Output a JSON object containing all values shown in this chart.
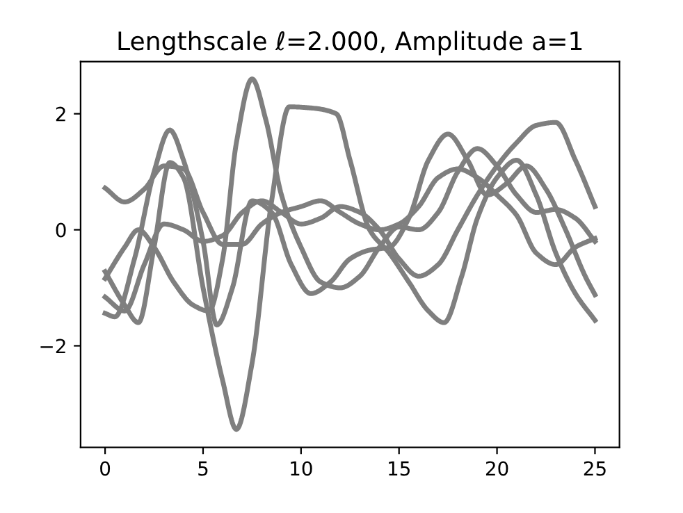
{
  "chart_data": {
    "type": "line",
    "title": "Lengthscale ℓ=2.000, Amplitude a=1",
    "series": [
      {
        "color": "#7f7f7f",
        "x": [
          0,
          1,
          2,
          3,
          4,
          5,
          6,
          7,
          8,
          9,
          10,
          11,
          12,
          13,
          14,
          15,
          16,
          17,
          18,
          19,
          20,
          21,
          22,
          23,
          24,
          25
        ],
        "values": [
          0.72,
          0.48,
          0.7,
          1.1,
          1.05,
          0.3,
          -0.25,
          -0.25,
          0.1,
          0.3,
          0.4,
          0.5,
          0.3,
          0.1,
          0.0,
          0.1,
          0.4,
          0.9,
          1.05,
          0.9,
          0.6,
          0.25,
          -0.4,
          -0.6,
          -0.3,
          -0.15
        ]
      },
      {
        "color": "#7f7f7f",
        "x": [
          0,
          0.5,
          1.5,
          2.5,
          3.3,
          4,
          5,
          5.7,
          6.5,
          7.5,
          8.5,
          9.5,
          10.5,
          11.5,
          12.5,
          13.5,
          14.5,
          15.5,
          16.5,
          17.5,
          18.5,
          19.5,
          20.5,
          21.5,
          22.5,
          23.5,
          24.5,
          25
        ],
        "values": [
          -1.44,
          -1.5,
          -0.5,
          1.0,
          1.72,
          1.2,
          -0.2,
          -1.64,
          -1.0,
          0.5,
          0.3,
          -0.6,
          -1.1,
          -0.9,
          -0.5,
          -0.35,
          -0.3,
          0.2,
          1.2,
          1.65,
          1.2,
          0.6,
          0.8,
          1.1,
          0.7,
          0.0,
          -0.8,
          -1.12
        ]
      },
      {
        "color": "#7f7f7f",
        "x": [
          0,
          1,
          1.7,
          2.5,
          3.3,
          4,
          5,
          6,
          6.7,
          7.5,
          8.5,
          9.4,
          10.5,
          11.8,
          12.5,
          13.5,
          14.5,
          15.5,
          16.5,
          17.3,
          18.2,
          19,
          20,
          21,
          22,
          23,
          24,
          25
        ],
        "values": [
          -0.72,
          -1.3,
          -1.6,
          -0.3,
          1.16,
          0.9,
          -1.0,
          -2.6,
          -3.44,
          -2.3,
          0.5,
          2.12,
          2.1,
          2.0,
          1.2,
          0.0,
          -0.4,
          -0.9,
          -1.4,
          -1.6,
          -0.8,
          0.2,
          0.9,
          1.2,
          0.6,
          -0.4,
          -1.1,
          -1.56
        ]
      },
      {
        "color": "#7f7f7f",
        "x": [
          0,
          1,
          1.7,
          2.5,
          3.5,
          4.5,
          5.3,
          6,
          6.7,
          7.5,
          8.2,
          9,
          10,
          11,
          12,
          13,
          14,
          15,
          16,
          17,
          18,
          19,
          20,
          21,
          22,
          23,
          24,
          25
        ],
        "values": [
          -0.84,
          -0.3,
          0.0,
          -0.3,
          -0.9,
          -1.3,
          -1.4,
          -0.5,
          1.5,
          2.6,
          1.9,
          0.6,
          -0.3,
          -0.9,
          -1.0,
          -0.8,
          -0.3,
          0.05,
          0.0,
          0.3,
          1.0,
          1.4,
          1.1,
          0.6,
          0.3,
          0.35,
          0.2,
          -0.2
        ]
      },
      {
        "color": "#7f7f7f",
        "x": [
          0,
          1,
          2,
          3,
          4,
          5,
          6,
          7,
          8,
          9,
          10,
          11,
          12,
          13,
          14,
          15,
          16,
          17,
          18,
          19,
          20,
          21,
          22,
          23,
          24,
          25
        ],
        "values": [
          -1.16,
          -1.4,
          -0.6,
          0.1,
          0.0,
          -0.2,
          -0.1,
          0.3,
          0.5,
          0.3,
          0.1,
          0.2,
          0.4,
          0.3,
          0.0,
          -0.5,
          -0.8,
          -0.6,
          0.0,
          0.6,
          1.1,
          1.5,
          1.8,
          1.85,
          1.2,
          0.4
        ]
      }
    ],
    "xlim": [
      -1.25,
      26.25
    ],
    "ylim": [
      -3.75,
      2.9
    ],
    "xticks": [
      0,
      5,
      10,
      15,
      20,
      25
    ],
    "yticks": [
      {
        "value": -2,
        "label": "−2"
      },
      0,
      2
    ],
    "grid": false,
    "legend": false
  }
}
